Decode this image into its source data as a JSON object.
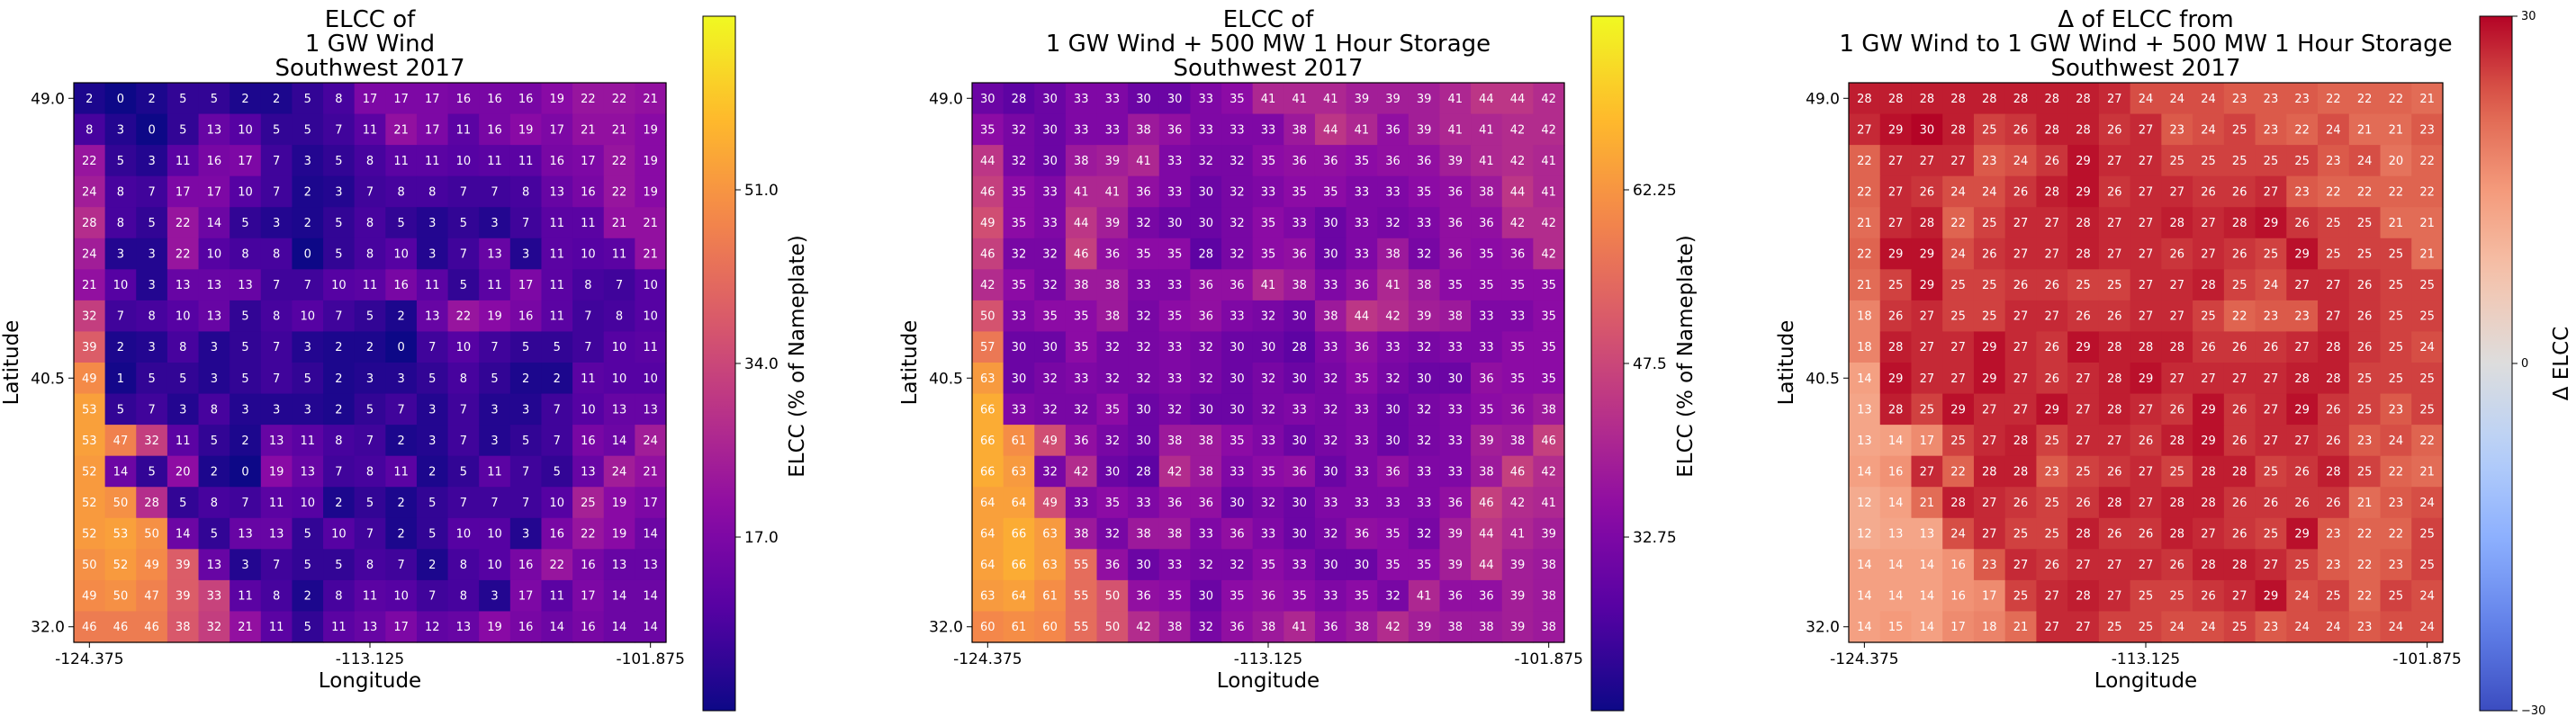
{
  "chart_data": [
    {
      "type": "heatmap",
      "title": [
        "ELCC of",
        "1 GW Wind",
        "Southwest 2017"
      ],
      "xlabel": "Longitude",
      "ylabel": "Latitude",
      "xticks": [
        "-124.375",
        "-113.125",
        "-101.875"
      ],
      "yticks": [
        "49.0",
        "40.5",
        "32.0"
      ],
      "colorbar": {
        "label": "ELCC (% of Nameplate)",
        "ticks": [
          "51.0",
          "34.0",
          "17.0"
        ],
        "vmin": 0,
        "vmax": 68,
        "colormap": "plasma"
      },
      "values": [
        [
          2,
          0,
          2,
          5,
          5,
          2,
          2,
          5,
          8,
          17,
          17,
          17,
          16,
          16,
          16,
          19,
          22,
          22,
          21
        ],
        [
          8,
          3,
          0,
          5,
          13,
          10,
          5,
          5,
          7,
          11,
          21,
          17,
          11,
          16,
          19,
          17,
          21,
          21,
          19
        ],
        [
          22,
          5,
          3,
          11,
          16,
          17,
          7,
          3,
          5,
          8,
          11,
          11,
          10,
          11,
          11,
          16,
          17,
          22,
          19
        ],
        [
          24,
          8,
          7,
          17,
          17,
          10,
          7,
          2,
          3,
          7,
          8,
          8,
          7,
          7,
          8,
          13,
          16,
          22,
          19
        ],
        [
          28,
          8,
          5,
          22,
          14,
          5,
          3,
          2,
          5,
          8,
          5,
          3,
          5,
          3,
          7,
          11,
          11,
          21,
          21
        ],
        [
          24,
          3,
          3,
          22,
          10,
          8,
          8,
          0,
          5,
          8,
          10,
          3,
          7,
          13,
          3,
          11,
          10,
          11,
          21
        ],
        [
          21,
          10,
          3,
          13,
          13,
          13,
          7,
          7,
          10,
          11,
          16,
          11,
          5,
          11,
          17,
          11,
          8,
          7,
          10
        ],
        [
          32,
          7,
          8,
          10,
          13,
          5,
          8,
          10,
          7,
          5,
          2,
          13,
          22,
          19,
          16,
          11,
          7,
          8,
          10
        ],
        [
          39,
          2,
          3,
          8,
          3,
          5,
          7,
          3,
          2,
          2,
          0,
          7,
          10,
          7,
          5,
          5,
          7,
          10,
          11
        ],
        [
          49,
          1,
          5,
          5,
          3,
          5,
          7,
          5,
          2,
          3,
          3,
          5,
          8,
          5,
          2,
          2,
          11,
          10,
          10
        ],
        [
          53,
          5,
          7,
          3,
          8,
          3,
          3,
          3,
          2,
          5,
          7,
          3,
          7,
          3,
          3,
          7,
          10,
          13,
          13
        ],
        [
          53,
          47,
          32,
          11,
          5,
          2,
          13,
          11,
          8,
          7,
          2,
          3,
          7,
          3,
          5,
          7,
          16,
          14,
          24
        ],
        [
          52,
          14,
          5,
          20,
          2,
          0,
          19,
          13,
          7,
          8,
          11,
          2,
          5,
          11,
          7,
          5,
          13,
          24,
          21
        ],
        [
          52,
          50,
          28,
          5,
          8,
          7,
          11,
          10,
          2,
          5,
          2,
          5,
          7,
          7,
          7,
          10,
          25,
          19,
          17
        ],
        [
          52,
          53,
          50,
          14,
          5,
          13,
          13,
          5,
          10,
          7,
          2,
          5,
          10,
          10,
          3,
          16,
          22,
          19,
          14
        ],
        [
          50,
          52,
          49,
          39,
          13,
          3,
          7,
          5,
          5,
          8,
          7,
          2,
          8,
          10,
          16,
          22,
          16,
          13,
          13
        ],
        [
          49,
          50,
          47,
          39,
          33,
          11,
          8,
          2,
          8,
          11,
          10,
          7,
          8,
          3,
          17,
          11,
          17,
          14,
          14
        ],
        [
          46,
          46,
          46,
          38,
          32,
          21,
          11,
          5,
          11,
          13,
          17,
          12,
          13,
          19,
          16,
          14,
          16,
          14,
          14
        ]
      ]
    },
    {
      "type": "heatmap",
      "title": [
        "ELCC of",
        "1 GW Wind + 500 MW 1 Hour Storage",
        "Southwest 2017"
      ],
      "xlabel": "Longitude",
      "ylabel": "Latitude",
      "xticks": [
        "-124.375",
        "-113.125",
        "-101.875"
      ],
      "yticks": [
        "49.0",
        "40.5",
        "32.0"
      ],
      "colorbar": {
        "label": "ELCC (% of Nameplate)",
        "ticks": [
          "62.25",
          "47.5",
          "32.75"
        ],
        "vmin": 18,
        "vmax": 77,
        "colormap": "plasma"
      },
      "values": [
        [
          30,
          28,
          30,
          33,
          33,
          30,
          30,
          33,
          35,
          41,
          41,
          41,
          39,
          39,
          39,
          41,
          44,
          44,
          42
        ],
        [
          35,
          32,
          30,
          33,
          33,
          38,
          36,
          33,
          33,
          33,
          38,
          44,
          41,
          36,
          39,
          41,
          41,
          42,
          42
        ],
        [
          44,
          32,
          30,
          38,
          39,
          41,
          33,
          32,
          32,
          35,
          36,
          36,
          35,
          36,
          36,
          39,
          41,
          42,
          41
        ],
        [
          46,
          35,
          33,
          41,
          41,
          36,
          33,
          30,
          32,
          33,
          35,
          35,
          33,
          33,
          35,
          36,
          38,
          44,
          41
        ],
        [
          49,
          35,
          33,
          44,
          39,
          32,
          30,
          30,
          32,
          35,
          33,
          30,
          33,
          32,
          33,
          36,
          36,
          42,
          42
        ],
        [
          46,
          32,
          32,
          46,
          36,
          35,
          35,
          28,
          32,
          35,
          36,
          30,
          33,
          38,
          32,
          36,
          35,
          36,
          42
        ],
        [
          42,
          35,
          32,
          38,
          38,
          33,
          33,
          36,
          36,
          41,
          38,
          33,
          36,
          41,
          38,
          35,
          35,
          35,
          35
        ],
        [
          50,
          33,
          35,
          35,
          38,
          32,
          35,
          36,
          33,
          32,
          30,
          38,
          44,
          42,
          39,
          38,
          33,
          33,
          35
        ],
        [
          57,
          30,
          30,
          35,
          32,
          32,
          33,
          32,
          30,
          30,
          28,
          33,
          36,
          33,
          32,
          33,
          33,
          35,
          35
        ],
        [
          63,
          30,
          32,
          33,
          32,
          32,
          33,
          32,
          30,
          32,
          30,
          32,
          35,
          32,
          30,
          30,
          36,
          35,
          35
        ],
        [
          66,
          33,
          32,
          32,
          35,
          30,
          32,
          30,
          30,
          32,
          33,
          32,
          33,
          30,
          32,
          33,
          35,
          36,
          38
        ],
        [
          66,
          61,
          49,
          36,
          32,
          30,
          38,
          38,
          35,
          33,
          30,
          32,
          33,
          30,
          32,
          33,
          39,
          38,
          46
        ],
        [
          66,
          63,
          32,
          42,
          30,
          28,
          42,
          38,
          33,
          35,
          36,
          30,
          33,
          36,
          33,
          33,
          38,
          46,
          42
        ],
        [
          64,
          64,
          49,
          33,
          35,
          33,
          36,
          36,
          30,
          32,
          30,
          33,
          33,
          33,
          33,
          36,
          46,
          42,
          41
        ],
        [
          64,
          66,
          63,
          38,
          32,
          38,
          38,
          33,
          36,
          33,
          30,
          32,
          36,
          35,
          32,
          39,
          44,
          41,
          39
        ],
        [
          64,
          66,
          63,
          55,
          36,
          30,
          33,
          32,
          32,
          35,
          33,
          30,
          30,
          35,
          35,
          39,
          44,
          39,
          38
        ],
        [
          63,
          64,
          61,
          55,
          50,
          36,
          35,
          30,
          35,
          36,
          35,
          33,
          35,
          32,
          41,
          36,
          36,
          39,
          38
        ],
        [
          60,
          61,
          60,
          55,
          50,
          42,
          38,
          32,
          36,
          38,
          41,
          36,
          38,
          42,
          39,
          38,
          38,
          39,
          38
        ]
      ]
    },
    {
      "type": "heatmap",
      "title": [
        "Δ of ELCC from",
        "1 GW Wind to 1 GW Wind + 500 MW 1 Hour Storage",
        "Southwest 2017"
      ],
      "xlabel": "Longitude",
      "ylabel": "Latitude",
      "xticks": [
        "-124.375",
        "-113.125",
        "-101.875"
      ],
      "yticks": [
        "49.0",
        "40.5",
        "32.0"
      ],
      "colorbar": {
        "label": "Δ ELCC",
        "ticks": [
          "30",
          "0",
          "−30"
        ],
        "vmin": -30,
        "vmax": 30,
        "colormap": "coolwarm"
      },
      "values": [
        [
          28,
          28,
          28,
          28,
          28,
          28,
          28,
          28,
          27,
          24,
          24,
          24,
          23,
          23,
          23,
          22,
          22,
          22,
          21
        ],
        [
          27,
          29,
          30,
          28,
          25,
          26,
          28,
          28,
          26,
          27,
          23,
          24,
          25,
          23,
          22,
          24,
          21,
          21,
          23
        ],
        [
          22,
          27,
          27,
          27,
          23,
          24,
          26,
          29,
          27,
          27,
          25,
          25,
          25,
          25,
          25,
          23,
          24,
          20,
          22
        ],
        [
          22,
          27,
          26,
          24,
          24,
          26,
          28,
          29,
          26,
          27,
          27,
          26,
          26,
          27,
          23,
          22,
          22,
          22,
          22
        ],
        [
          21,
          27,
          28,
          22,
          25,
          27,
          27,
          28,
          27,
          27,
          28,
          27,
          28,
          29,
          26,
          25,
          25,
          21,
          21
        ],
        [
          22,
          29,
          29,
          24,
          26,
          27,
          27,
          28,
          27,
          27,
          26,
          27,
          26,
          25,
          29,
          25,
          25,
          25,
          21
        ],
        [
          21,
          25,
          29,
          25,
          25,
          26,
          26,
          25,
          25,
          27,
          27,
          28,
          25,
          24,
          27,
          27,
          26,
          25,
          25
        ],
        [
          18,
          26,
          27,
          25,
          25,
          27,
          27,
          26,
          26,
          27,
          27,
          25,
          22,
          23,
          23,
          27,
          26,
          25,
          25
        ],
        [
          18,
          28,
          27,
          27,
          29,
          27,
          26,
          29,
          28,
          28,
          28,
          26,
          26,
          26,
          27,
          28,
          26,
          25,
          24
        ],
        [
          14,
          29,
          27,
          27,
          29,
          27,
          26,
          27,
          28,
          29,
          27,
          27,
          27,
          27,
          28,
          28,
          25,
          25,
          25
        ],
        [
          13,
          28,
          25,
          29,
          27,
          27,
          29,
          27,
          28,
          27,
          26,
          29,
          26,
          27,
          29,
          26,
          25,
          23,
          25
        ],
        [
          13,
          14,
          17,
          25,
          27,
          28,
          25,
          27,
          27,
          26,
          28,
          29,
          26,
          27,
          27,
          26,
          23,
          24,
          22
        ],
        [
          14,
          16,
          27,
          22,
          28,
          28,
          23,
          25,
          26,
          27,
          25,
          28,
          28,
          25,
          26,
          28,
          25,
          22,
          21
        ],
        [
          12,
          14,
          21,
          28,
          27,
          26,
          25,
          26,
          28,
          27,
          28,
          28,
          26,
          26,
          26,
          26,
          21,
          23,
          24
        ],
        [
          12,
          13,
          13,
          24,
          27,
          25,
          25,
          28,
          26,
          26,
          28,
          27,
          26,
          25,
          29,
          23,
          22,
          22,
          25
        ],
        [
          14,
          14,
          14,
          16,
          23,
          27,
          26,
          27,
          27,
          27,
          26,
          28,
          28,
          27,
          25,
          23,
          22,
          23,
          25
        ],
        [
          14,
          14,
          14,
          16,
          17,
          25,
          27,
          28,
          27,
          25,
          25,
          26,
          27,
          29,
          24,
          25,
          22,
          25,
          24
        ],
        [
          14,
          15,
          14,
          17,
          18,
          21,
          27,
          27,
          25,
          25,
          24,
          24,
          25,
          23,
          24,
          24,
          23,
          24,
          24
        ]
      ]
    }
  ]
}
